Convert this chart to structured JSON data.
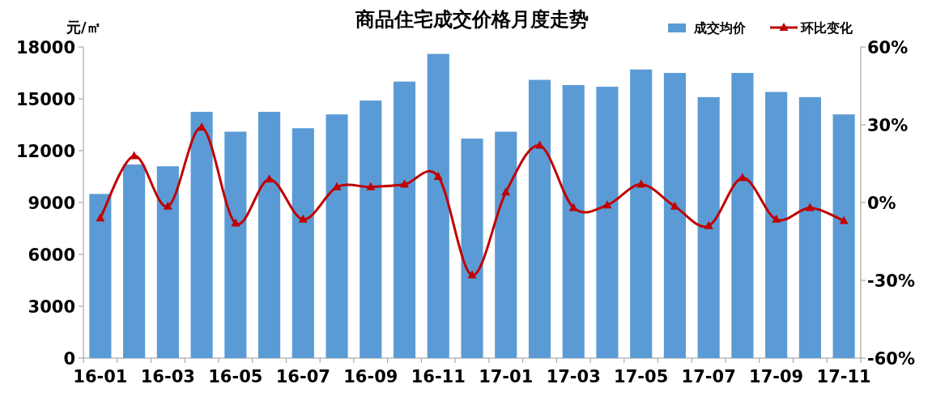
{
  "chart_data": {
    "type": "bar",
    "title": "商品住宅成交价格月度走势",
    "ylabel": "元/㎡",
    "categories": [
      "16-01",
      null,
      "16-03",
      null,
      "16-05",
      null,
      "16-07",
      null,
      "16-09",
      null,
      "16-11",
      null,
      "17-01",
      null,
      "17-03",
      null,
      "17-05",
      null,
      "17-07",
      null,
      "17-09",
      null,
      "17-11"
    ],
    "series": [
      {
        "name": "成交均价",
        "color": "#5b9bd5",
        "values": [
          9500,
          11200,
          11100,
          14250,
          13100,
          14250,
          13300,
          14100,
          14900,
          16000,
          17600,
          12700,
          13100,
          16100,
          15800,
          15700,
          16700,
          16500,
          15100,
          16500,
          15400,
          15100,
          14100
        ]
      },
      {
        "name": "环比变化",
        "type": "line",
        "axis": "y2",
        "color": "#c00000",
        "marker": "triangle",
        "values": [
          -6,
          18,
          -1.5,
          29,
          -8,
          9,
          -6.5,
          6,
          6,
          7,
          10,
          -28,
          4,
          22,
          -2,
          -1,
          7,
          -1.5,
          -9,
          9.5,
          -6.5,
          -2,
          -7
        ]
      }
    ],
    "ylim": [
      0,
      18000
    ],
    "yticks": [
      0,
      3000,
      6000,
      9000,
      12000,
      15000,
      18000
    ],
    "y2lim": [
      -60,
      60
    ],
    "y2ticks": [
      {
        "value": -60,
        "label": "-60%"
      },
      {
        "value": -30,
        "label": "-30%"
      },
      {
        "value": 0,
        "label": "0%"
      },
      {
        "value": 30,
        "label": "30%"
      },
      {
        "value": 60,
        "label": "60%"
      }
    ],
    "legend": "top right"
  }
}
